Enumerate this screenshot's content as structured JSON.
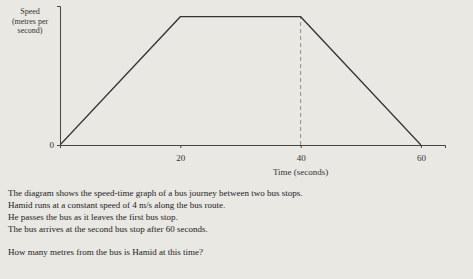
{
  "chart_data": {
    "type": "line",
    "y_label": [
      "Speed",
      "(metres per",
      "second)"
    ],
    "x_label": "Time (seconds)",
    "x": [
      0,
      20,
      40,
      60
    ],
    "values": [
      0,
      12,
      12,
      0
    ],
    "xlim": [
      0,
      64
    ],
    "xticks": [
      20,
      40,
      60
    ],
    "ylim": [
      0,
      13
    ],
    "yticks": [
      0
    ],
    "color": "#333333",
    "annotations": [
      "The diagram shows the speed-time graph of a bus journey between two bus stops.",
      "Hamid runs at a constant speed of 4 m/s along the bus route.",
      "He passes the bus as it leaves the first bus stop.",
      "The bus arrives at the second bus stop after 60 seconds.",
      "How many metres from the bus is Hamid at this time?"
    ]
  }
}
